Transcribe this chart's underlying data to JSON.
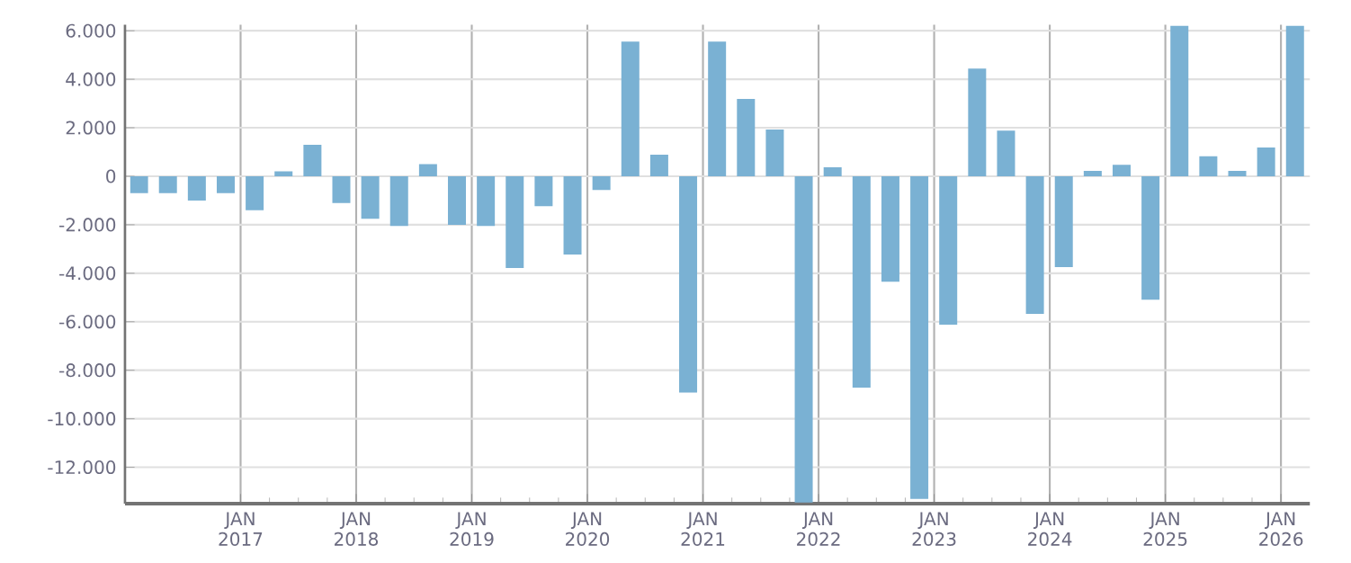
{
  "chart_data": {
    "type": "bar",
    "color": "#7ab1d3",
    "grid": true,
    "x": [
      "2016-02-15",
      "2016-05-15",
      "2016-08-15",
      "2016-11-15",
      "2017-02-15",
      "2017-05-15",
      "2017-08-15",
      "2017-11-15",
      "2018-02-15",
      "2018-05-15",
      "2018-08-15",
      "2018-11-15",
      "2019-02-15",
      "2019-05-15",
      "2019-08-15",
      "2019-11-15",
      "2020-02-15",
      "2020-05-15",
      "2020-08-15",
      "2020-11-15",
      "2021-02-15",
      "2021-05-15",
      "2021-08-15",
      "2021-11-15",
      "2022-02-15",
      "2022-05-15",
      "2022-08-15",
      "2022-11-15",
      "2023-02-15",
      "2023-05-15",
      "2023-08-15",
      "2023-11-15",
      "2024-02-15",
      "2024-05-15",
      "2024-08-15",
      "2024-11-15",
      "2025-02-15",
      "2025-05-15",
      "2025-08-15",
      "2025-11-15",
      "2026-02-15"
    ],
    "values": [
      -700,
      -700,
      -1000,
      -700,
      -1400,
      200,
      1300,
      -1100,
      -1750,
      -2050,
      500,
      -2000,
      -2050,
      -3780,
      -1230,
      -3230,
      -570,
      5550,
      890,
      -8920,
      5550,
      3190,
      1930,
      -13450,
      370,
      -8720,
      -4350,
      -13310,
      -6120,
      4440,
      1880,
      -5680,
      -3750,
      220,
      470,
      -5090,
      6200,
      820,
      220,
      1190,
      6200
    ],
    "xlim": [
      "2016-01",
      "2026-04"
    ],
    "ylim": [
      -13500,
      6250
    ],
    "xticks": [
      {
        "value": "2017-01",
        "label": "JAN 2017"
      },
      {
        "value": "2018-01",
        "label": "JAN 2018"
      },
      {
        "value": "2019-01",
        "label": "JAN 2019"
      },
      {
        "value": "2020-01",
        "label": "JAN 2020"
      },
      {
        "value": "2021-01",
        "label": "JAN 2021"
      },
      {
        "value": "2022-01",
        "label": "JAN 2022"
      },
      {
        "value": "2023-01",
        "label": "JAN 2023"
      },
      {
        "value": "2024-01",
        "label": "JAN 2024"
      },
      {
        "value": "2025-01",
        "label": "JAN 2025"
      },
      {
        "value": "2026-01",
        "label": "JAN 2026"
      }
    ],
    "yticks": [
      {
        "value": -12000,
        "label": "-12.000"
      },
      {
        "value": -10000,
        "label": "-10.000"
      },
      {
        "value": -8000,
        "label": "-8.000"
      },
      {
        "value": -6000,
        "label": "-6.000"
      },
      {
        "value": -4000,
        "label": "-4.000"
      },
      {
        "value": -2000,
        "label": "-2.000"
      },
      0,
      {
        "value": 2000,
        "label": "2.000"
      },
      {
        "value": 4000,
        "label": "4.000"
      },
      {
        "value": 6000,
        "label": "6.000"
      }
    ]
  }
}
